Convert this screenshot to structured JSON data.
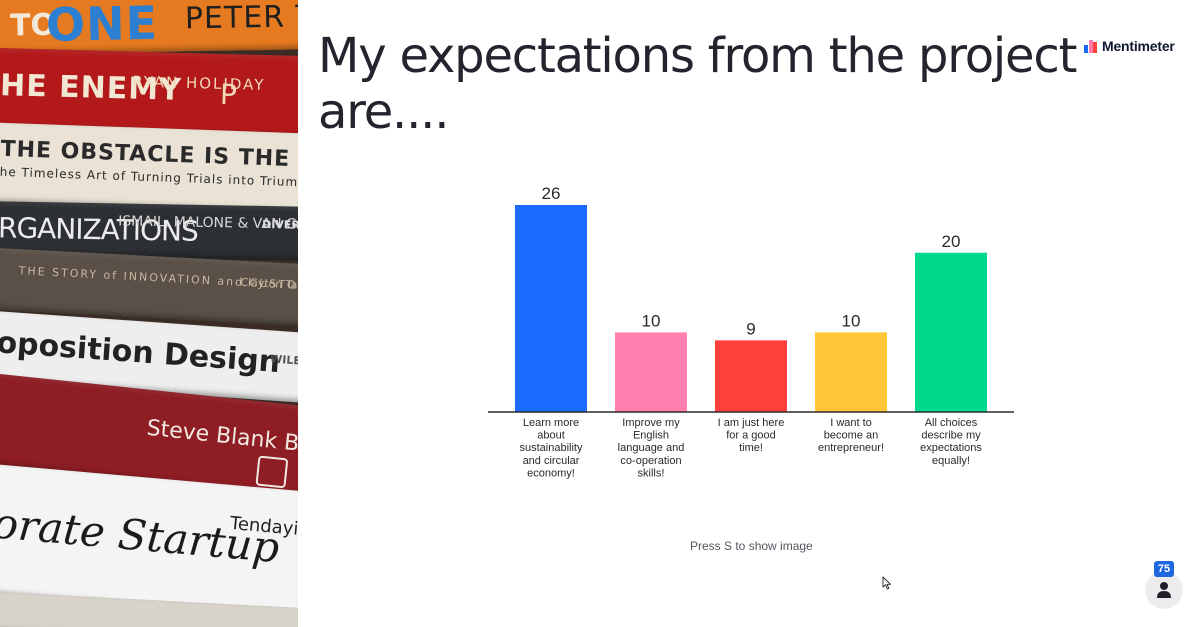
{
  "slide": {
    "title": "My expectations from the project are...."
  },
  "brand": {
    "name": "Mentimeter",
    "icon": "mentimeter-logo-icon",
    "icon_colors": [
      "#196cff",
      "#ff7bac",
      "#ff403d"
    ]
  },
  "books_image": {
    "spines": [
      {
        "a": "TO",
        "b": "ONE",
        "c": "PETER T"
      },
      {
        "a": "HE ENEMY",
        "b": "RYAN HOLIDAY",
        "c": "P"
      },
      {
        "a": "THE OBSTACLE IS THE WAY",
        "b": "he Timeless Art of Turning Trials into Triumph"
      },
      {
        "a": "RGANIZATIONS",
        "b": "ISMAIL, MALONE & VAN GEEST",
        "c": "DIVERS BOOKS"
      },
      {
        "a": "THE STORY of INNOVATION and CUSTOMER CHOICE",
        "b": "Clayton Taddy Ha and Da"
      },
      {
        "a": "oposition Design",
        "b": "WILEY"
      },
      {
        "a": "Steve Blank Bob Dorf"
      },
      {
        "a": "orate Startup",
        "b": "Tendayi Dan T Esther G"
      }
    ]
  },
  "chart_data": {
    "type": "bar",
    "categories": [
      "Learn more about sustainability and circular economy!",
      "Improve my English language and co-operation skills!",
      "I am just here for a good time!",
      "I want to become an entrepreneur!",
      "All choices describe my expectations equally!"
    ],
    "category_lines": [
      [
        "Learn more",
        "about",
        "sustainability",
        "and circular",
        "economy!"
      ],
      [
        "Improve my",
        "English",
        "language and",
        "co-operation",
        "skills!"
      ],
      [
        "I am just here",
        "for a good",
        "time!"
      ],
      [
        "I want to",
        "become an",
        "entrepreneur!"
      ],
      [
        "All choices",
        "describe my",
        "expectations",
        "equally!"
      ]
    ],
    "values": [
      26,
      10,
      9,
      10,
      20
    ],
    "colors": [
      "#196cff",
      "#ff80ae",
      "#ff403d",
      "#ffc738",
      "#00d98b"
    ],
    "ylim": [
      0,
      26
    ],
    "grid": false,
    "legend": "none"
  },
  "footer": {
    "hint": "Press S to show image",
    "audience_count": "75",
    "audience_icon": "person-icon",
    "cursor_icon": "mouse-pointer-icon"
  }
}
